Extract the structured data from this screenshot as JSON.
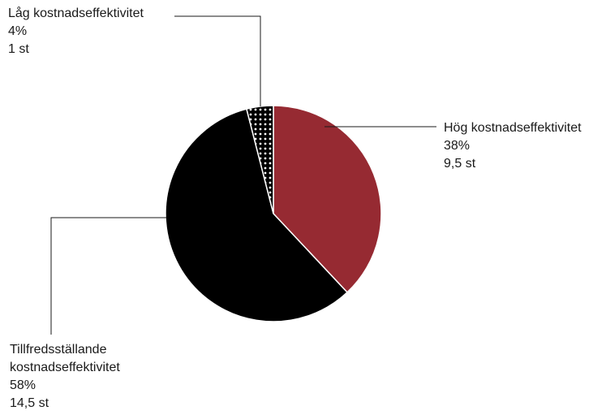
{
  "chart_data": {
    "type": "pie",
    "slices": [
      {
        "name": "Hög kostnadseffektivitet",
        "percent_label": "38%",
        "count_label": "9,5 st",
        "value": 9.5,
        "color": "#962a32"
      },
      {
        "name": "Tillfredsställande kostnadseffektivitet",
        "name_lines": [
          "Tillfredsställande",
          "kostnadseffektivitet"
        ],
        "percent_label": "58%",
        "count_label": "14,5 st",
        "value": 14.5,
        "color": "#000000"
      },
      {
        "name": "Låg kostnadseffektivitet",
        "percent_label": "4%",
        "count_label": "1 st",
        "value": 1,
        "color": "#000000",
        "pattern": "white-dots"
      }
    ]
  }
}
